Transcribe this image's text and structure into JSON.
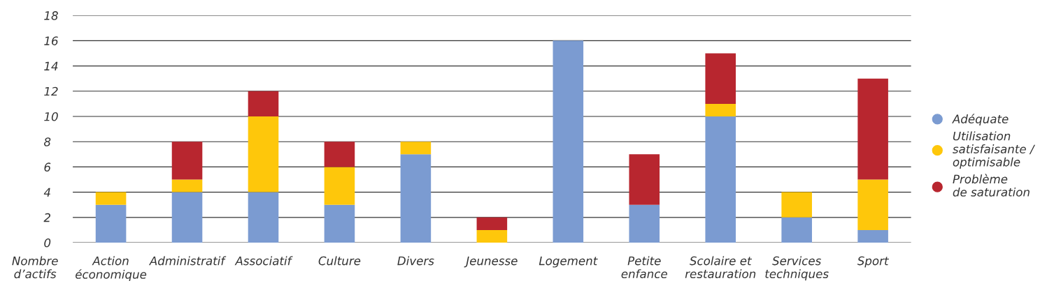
{
  "chart_data": {
    "type": "bar",
    "stacked": true,
    "xlabel": "Nombre\nd’actifs",
    "categories": [
      "Action\néconomique",
      "Administratif",
      "Associatif",
      "Culture",
      "Divers",
      "Jeunesse",
      "Logement",
      "Petite\nenfance",
      "Scolaire et\nrestauration",
      "Services\ntechniques",
      "Sport"
    ],
    "series": [
      {
        "name": "Adéquate",
        "color": "#7b9bd1",
        "values": [
          3,
          4,
          4,
          3,
          7,
          0,
          16,
          3,
          10,
          2,
          1
        ]
      },
      {
        "name": "Utilisation\nsatisfaisante /\noptimisable",
        "color": "#fec70b",
        "values": [
          1,
          1,
          6,
          3,
          1,
          1,
          0,
          0,
          1,
          2,
          4
        ]
      },
      {
        "name": "Problème\nde saturation",
        "color": "#b8262f",
        "values": [
          0,
          3,
          2,
          2,
          0,
          1,
          0,
          4,
          4,
          0,
          8
        ]
      }
    ],
    "ylim": [
      0,
      18
    ],
    "yticks": [
      0,
      2,
      4,
      6,
      8,
      10,
      12,
      14,
      16,
      18
    ],
    "grid": "y",
    "legend": "right"
  }
}
